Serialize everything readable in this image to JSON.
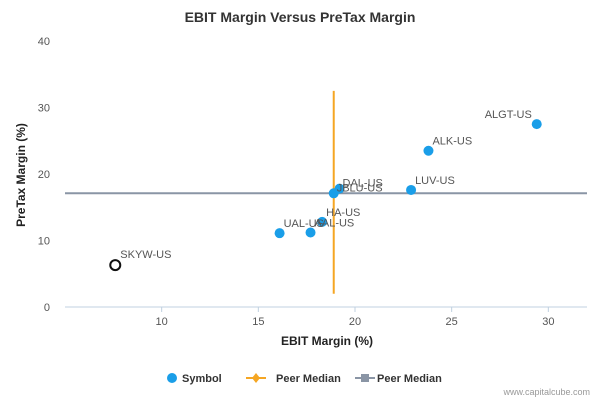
{
  "chart_data": {
    "type": "scatter",
    "title": "EBIT Margin Versus PreTax Margin",
    "xlabel": "EBIT Margin (%)",
    "ylabel": "PreTax Margin (%)",
    "xlim": [
      5,
      32
    ],
    "ylim": [
      0,
      40
    ],
    "x_ticks": [
      10,
      15,
      20,
      25,
      30
    ],
    "y_ticks": [
      0,
      10,
      20,
      30,
      40
    ],
    "grid": false,
    "legend_position": "bottom",
    "colors": {
      "symbol": "#1a9ee8",
      "peer_median_vertical": "#f5a623",
      "peer_median_horizontal": "#8a95a5",
      "highlight_outline": "#111111"
    },
    "series": [
      {
        "name": "Symbol",
        "points": [
          {
            "label": "ALGT-US",
            "x": 29.4,
            "y": 27.5
          },
          {
            "label": "ALK-US",
            "x": 23.8,
            "y": 23.5
          },
          {
            "label": "LUV-US",
            "x": 22.9,
            "y": 17.6
          },
          {
            "label": "DAL-US",
            "x": 19.2,
            "y": 17.8
          },
          {
            "label": "JBLU-US",
            "x": 18.9,
            "y": 17.1
          },
          {
            "label": "HA-US",
            "x": 18.3,
            "y": 12.8
          },
          {
            "label": "UAL-US",
            "x": 16.1,
            "y": 11.1
          },
          {
            "label": "AAL-US",
            "x": 17.7,
            "y": 11.2
          }
        ]
      },
      {
        "name": "Peer Median",
        "orientation": "vertical",
        "x": 18.9,
        "y_range": [
          2,
          32.5
        ]
      },
      {
        "name": "Peer Median",
        "orientation": "horizontal",
        "y": 17.1,
        "x_range": [
          5,
          32
        ]
      }
    ],
    "highlight": {
      "label": "SKYW-US",
      "x": 7.6,
      "y": 6.3
    }
  },
  "footer": {
    "credit": "www.capitalcube.com"
  }
}
